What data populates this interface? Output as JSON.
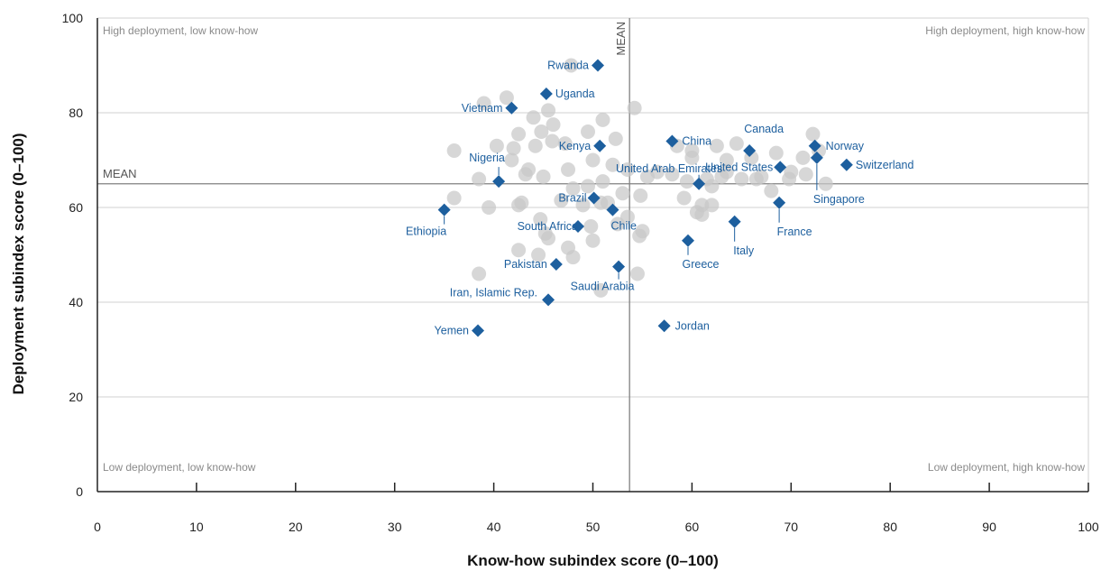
{
  "chart_data": {
    "type": "scatter",
    "xlabel": "Know-how subindex score (0–100)",
    "ylabel": "Deployment subindex score (0–100)",
    "xlim": [
      0,
      100
    ],
    "ylim": [
      0,
      100
    ],
    "x_ticks": [
      0,
      10,
      20,
      30,
      40,
      50,
      60,
      70,
      80,
      90,
      100
    ],
    "y_ticks": [
      0,
      20,
      40,
      60,
      80,
      100
    ],
    "grid": "horizontal",
    "colors": {
      "highlight": "#1d5f9e",
      "background_points": "#c8c8c8",
      "mean_line": "#808080",
      "gridline": "#d0d0d0"
    },
    "means": {
      "x": 53.7,
      "y": 65,
      "x_label": "MEAN",
      "y_label": "MEAN"
    },
    "quadrant_labels": {
      "top_left": "High deployment, low know-how",
      "top_right": "High deployment, high know-how",
      "bottom_left": "Low deployment, low know-how",
      "bottom_right": "Low deployment, high know-how"
    },
    "highlighted": [
      {
        "name": "Rwanda",
        "x": 50.5,
        "y": 90
      },
      {
        "name": "Uganda",
        "x": 45.3,
        "y": 84
      },
      {
        "name": "Vietnam",
        "x": 41.8,
        "y": 81
      },
      {
        "name": "Kenya",
        "x": 50.7,
        "y": 73
      },
      {
        "name": "Nigeria",
        "x": 40.5,
        "y": 65.5
      },
      {
        "name": "Ethiopia",
        "x": 35.0,
        "y": 59.5
      },
      {
        "name": "Brazil",
        "x": 50.1,
        "y": 62
      },
      {
        "name": "Chile",
        "x": 52.0,
        "y": 59.5
      },
      {
        "name": "South Africa",
        "x": 48.5,
        "y": 56
      },
      {
        "name": "Pakistan",
        "x": 46.3,
        "y": 48
      },
      {
        "name": "Saudi Arabia",
        "x": 52.6,
        "y": 47.5
      },
      {
        "name": "Iran, Islamic Rep.",
        "x": 45.5,
        "y": 40.5
      },
      {
        "name": "Yemen",
        "x": 38.4,
        "y": 34
      },
      {
        "name": "China",
        "x": 58.0,
        "y": 74
      },
      {
        "name": "Canada",
        "x": 65.8,
        "y": 72
      },
      {
        "name": "Norway",
        "x": 72.4,
        "y": 73
      },
      {
        "name": "Switzerland",
        "x": 75.6,
        "y": 69
      },
      {
        "name": "United States",
        "x": 68.9,
        "y": 68.5
      },
      {
        "name": "United Arab Emirates",
        "x": 60.7,
        "y": 65
      },
      {
        "name": "Singapore",
        "x": 72.6,
        "y": 70.5
      },
      {
        "name": "France",
        "x": 68.8,
        "y": 61
      },
      {
        "name": "Italy",
        "x": 64.3,
        "y": 57
      },
      {
        "name": "Greece",
        "x": 59.6,
        "y": 53
      },
      {
        "name": "Jordan",
        "x": 57.2,
        "y": 35
      }
    ],
    "background": [
      [
        47.8,
        90
      ],
      [
        39.0,
        82
      ],
      [
        41.3,
        83.2
      ],
      [
        45.5,
        80.5
      ],
      [
        51.0,
        78.5
      ],
      [
        54.2,
        81
      ],
      [
        44.0,
        79
      ],
      [
        46.0,
        77.5
      ],
      [
        42.5,
        75.5
      ],
      [
        44.8,
        76
      ],
      [
        49.5,
        76
      ],
      [
        52.3,
        74.5
      ],
      [
        45.9,
        74
      ],
      [
        40.3,
        73
      ],
      [
        42.0,
        72.5
      ],
      [
        44.2,
        73
      ],
      [
        47.2,
        73.5
      ],
      [
        36.0,
        72
      ],
      [
        41.8,
        70
      ],
      [
        43.2,
        67
      ],
      [
        43.5,
        68
      ],
      [
        38.5,
        66
      ],
      [
        45.0,
        66.5
      ],
      [
        47.5,
        68
      ],
      [
        50.0,
        70
      ],
      [
        52.0,
        69
      ],
      [
        53.5,
        68
      ],
      [
        55.5,
        66.5
      ],
      [
        48.0,
        64
      ],
      [
        49.5,
        64.5
      ],
      [
        51.0,
        65.5
      ],
      [
        53.0,
        63
      ],
      [
        54.8,
        62.5
      ],
      [
        36.0,
        62
      ],
      [
        39.5,
        60
      ],
      [
        42.8,
        61
      ],
      [
        42.5,
        60.5
      ],
      [
        46.8,
        61.5
      ],
      [
        49.0,
        60.5
      ],
      [
        50.8,
        61
      ],
      [
        51.5,
        61
      ],
      [
        53.5,
        58
      ],
      [
        55.0,
        55
      ],
      [
        44.7,
        57.5
      ],
      [
        45.2,
        54.5
      ],
      [
        49.8,
        56
      ],
      [
        52.5,
        56.5
      ],
      [
        45.5,
        53.5
      ],
      [
        47.5,
        51.5
      ],
      [
        50.0,
        53
      ],
      [
        42.5,
        51
      ],
      [
        44.5,
        50
      ],
      [
        48.0,
        49.5
      ],
      [
        38.5,
        46
      ],
      [
        54.5,
        46
      ],
      [
        50.8,
        42.5
      ],
      [
        54.7,
        54
      ],
      [
        58.5,
        73
      ],
      [
        60.0,
        72
      ],
      [
        62.5,
        73
      ],
      [
        64.5,
        73.5
      ],
      [
        63.5,
        70
      ],
      [
        66.0,
        70.5
      ],
      [
        68.5,
        71.5
      ],
      [
        72.2,
        75.5
      ],
      [
        71.2,
        70.5
      ],
      [
        72.8,
        72
      ],
      [
        70.0,
        67.5
      ],
      [
        71.5,
        67
      ],
      [
        73.5,
        65
      ],
      [
        69.8,
        66
      ],
      [
        67.0,
        66.5
      ],
      [
        66.5,
        66
      ],
      [
        63.0,
        66.5
      ],
      [
        62.0,
        64.5
      ],
      [
        59.5,
        65.5
      ],
      [
        58.0,
        67
      ],
      [
        61.5,
        66
      ],
      [
        63.5,
        67.5
      ],
      [
        65.0,
        66
      ],
      [
        68.0,
        63.5
      ],
      [
        59.2,
        62
      ],
      [
        61.0,
        60.5
      ],
      [
        62.0,
        60.5
      ],
      [
        60.5,
        59
      ],
      [
        61.0,
        58.5
      ],
      [
        60.0,
        70.5
      ],
      [
        56.5,
        67.5
      ]
    ]
  }
}
